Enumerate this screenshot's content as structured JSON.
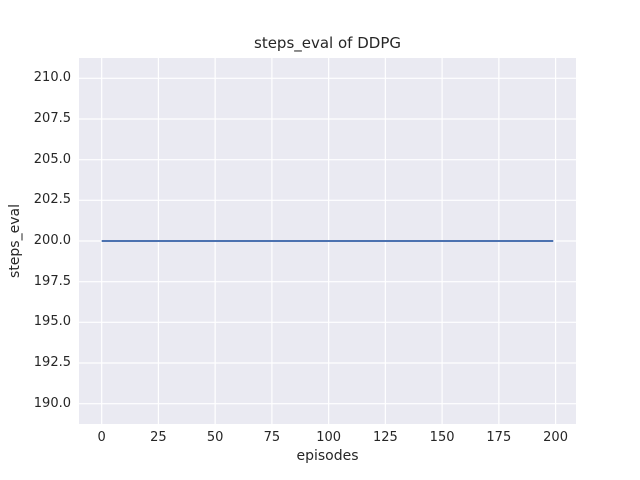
{
  "chart_data": {
    "type": "line",
    "title": "steps_eval of DDPG",
    "xlabel": "episodes",
    "ylabel": "steps_eval",
    "xlim": [
      -10,
      209
    ],
    "ylim": [
      188.75,
      211.25
    ],
    "xticks": [
      0,
      25,
      50,
      75,
      100,
      125,
      150,
      175,
      200
    ],
    "xtick_labels": [
      "0",
      "25",
      "50",
      "75",
      "100",
      "125",
      "150",
      "175",
      "200"
    ],
    "yticks": [
      190.0,
      192.5,
      195.0,
      197.5,
      200.0,
      202.5,
      205.0,
      207.5,
      210.0
    ],
    "ytick_labels": [
      "190.0",
      "192.5",
      "195.0",
      "197.5",
      "200.0",
      "202.5",
      "205.0",
      "207.5",
      "210.0"
    ],
    "grid": true,
    "legend": null,
    "series": [
      {
        "name": "DDPG steps_eval",
        "x": [
          0,
          199
        ],
        "y": [
          200,
          200
        ]
      }
    ],
    "style": {
      "figure_bg": "#ffffff",
      "plot_bg": "#eaeaf2",
      "grid_color": "#ffffff",
      "line_color": "#4c72b0",
      "text_color": "#262626"
    }
  }
}
